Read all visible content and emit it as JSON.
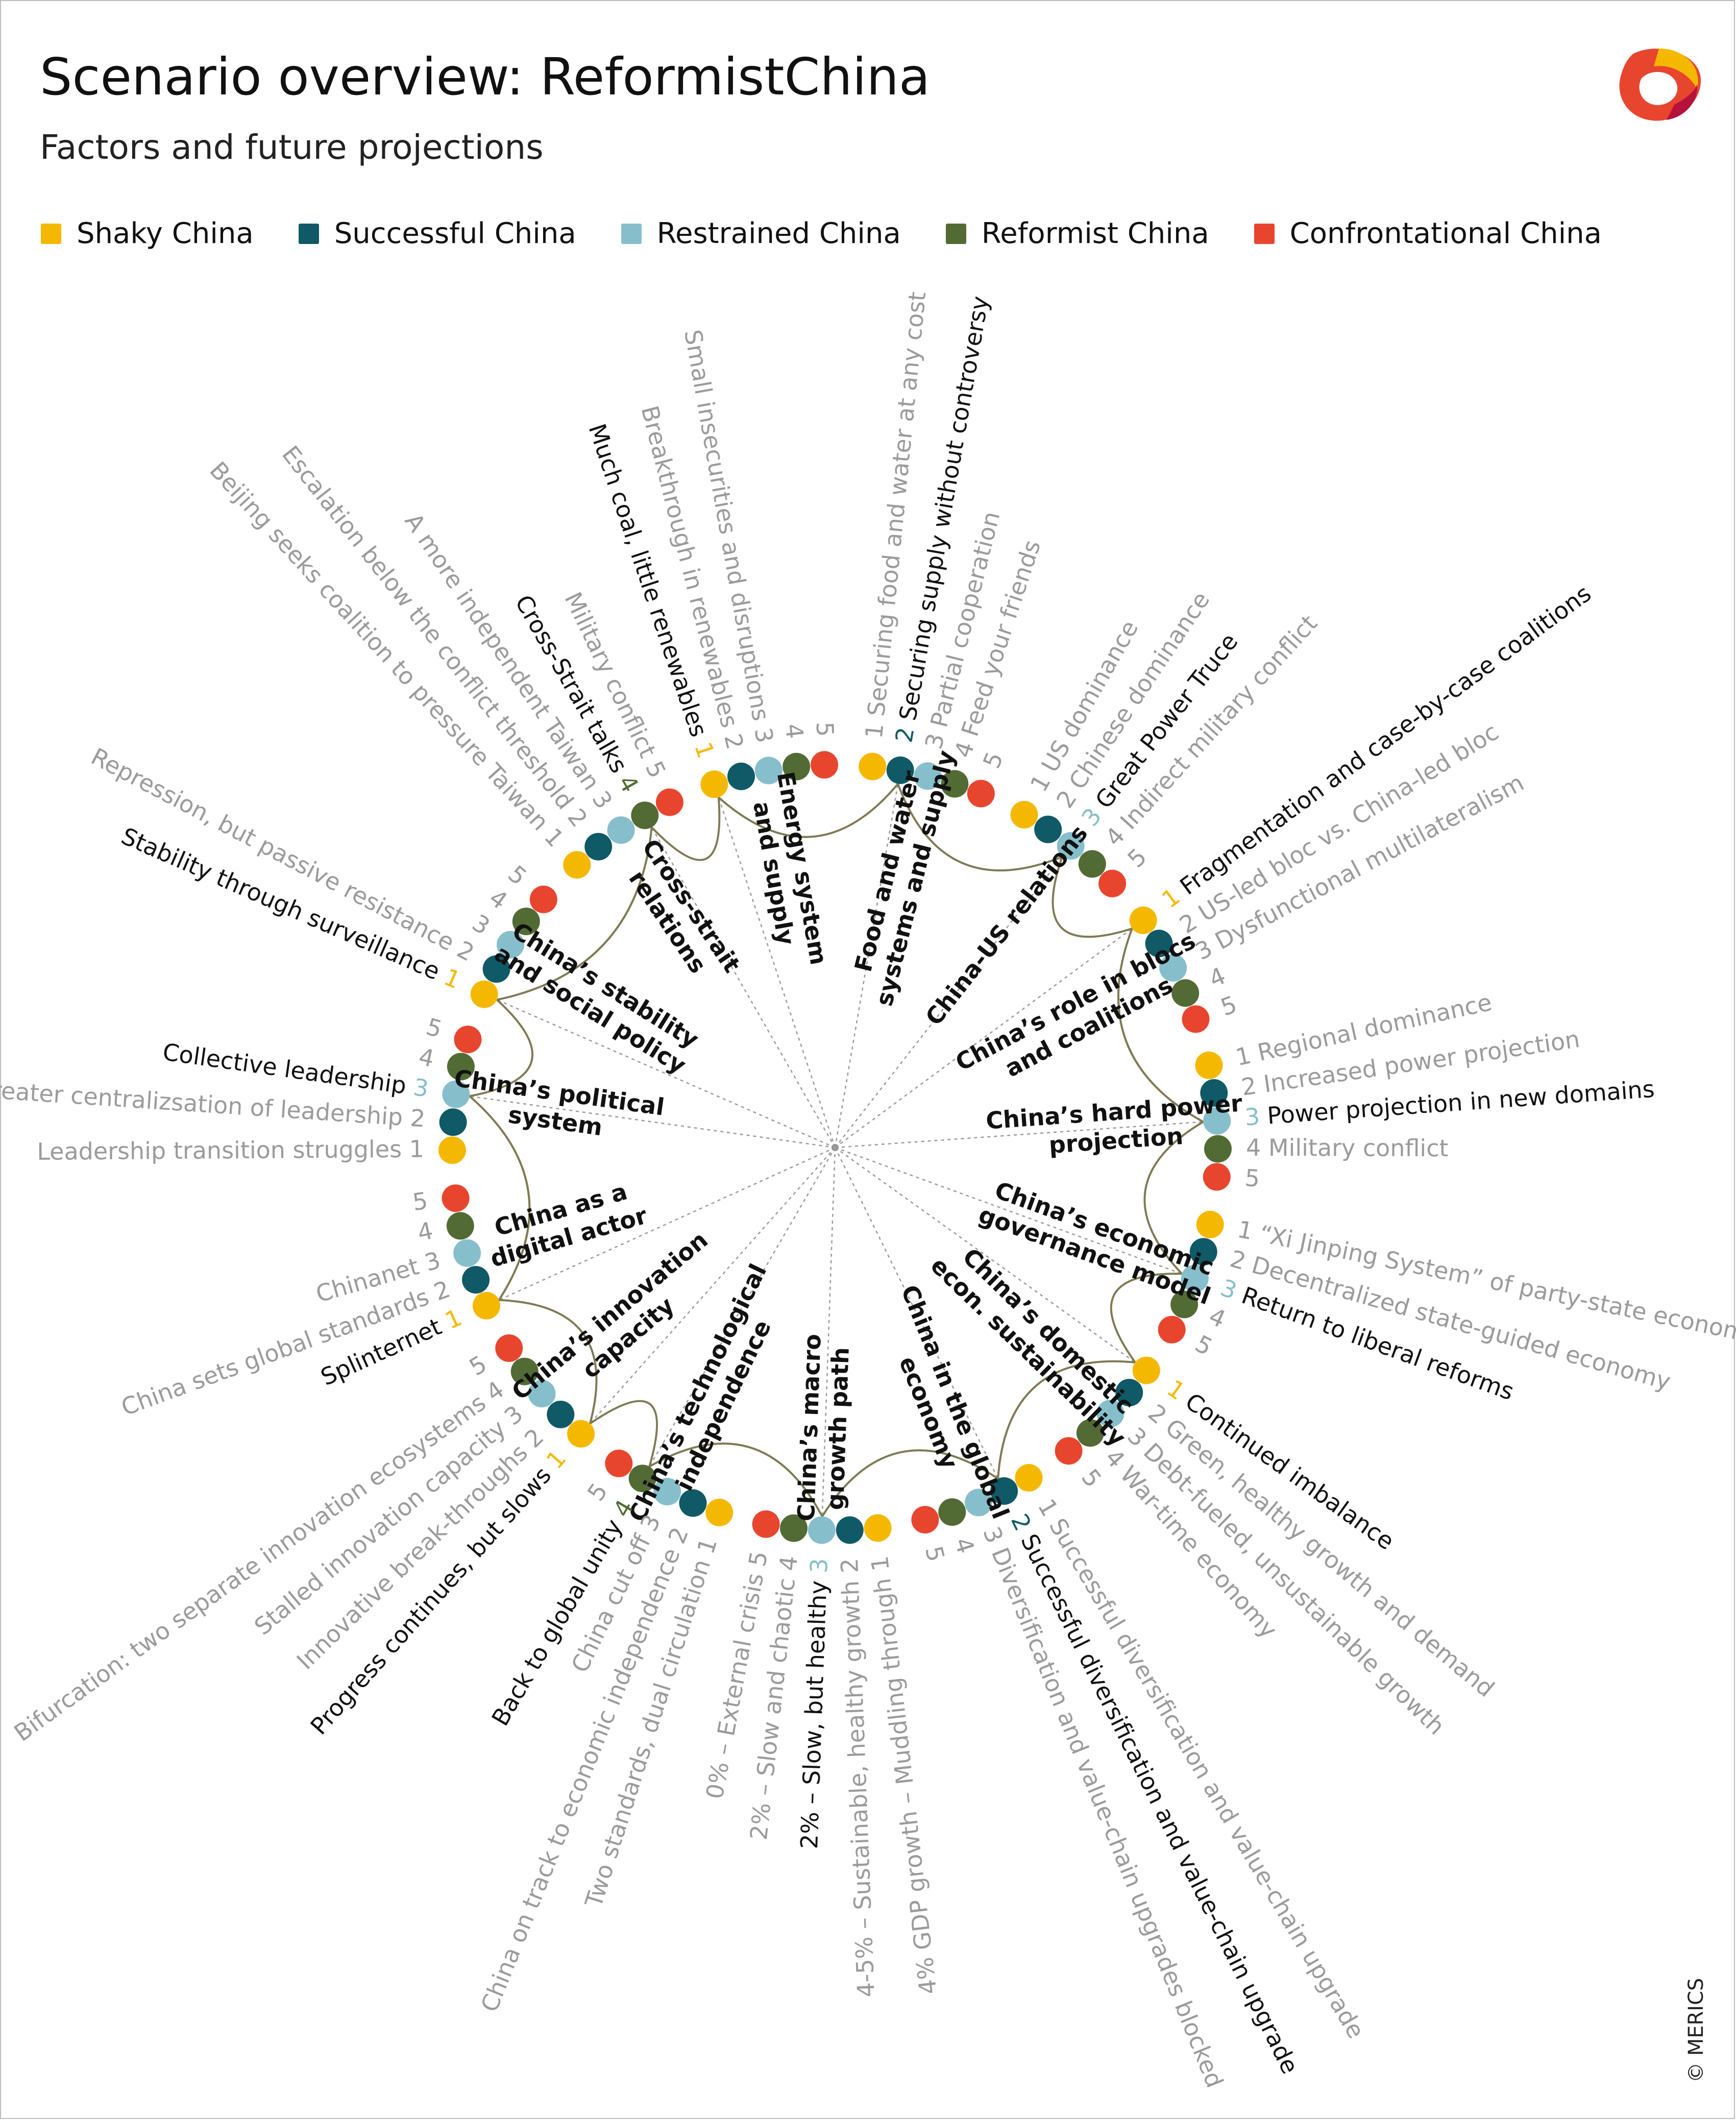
{
  "title": "Scenario overview: ReformistChina",
  "subtitle": "Factors and future projections",
  "copyright": "© MERICS",
  "legend": [
    {
      "label": "Shaky China",
      "color": "#F5B800"
    },
    {
      "label": "Successful China",
      "color": "#0F5A66"
    },
    {
      "label": "Restrained China",
      "color": "#86BFCB"
    },
    {
      "label": "Reformist China",
      "color": "#526B34"
    },
    {
      "label": "Confrontational China",
      "color": "#E8452F"
    }
  ],
  "colors": {
    "shaky": "#F5B800",
    "successful": "#0F5A66",
    "restrained": "#86BFCB",
    "reformist": "#526B34",
    "confrontational": "#E8452F",
    "arc": "#7E7A54",
    "muted": "#9B9B9B",
    "dark": "#111111"
  },
  "factors": [
    {
      "name": [
        "Food and water",
        "systems and supply"
      ],
      "selected": 2,
      "projections": [
        "Securing food and water at any cost",
        "Securing supply without controversy",
        "Partial cooperation",
        "Feed your friends",
        ""
      ]
    },
    {
      "name": [
        "China-US relations"
      ],
      "selected": 3,
      "projections": [
        "US dominance",
        "Chinese dominance",
        "Great Power Truce",
        "Indirect military conflict",
        ""
      ]
    },
    {
      "name": [
        "China’s role in blocs",
        "and coalitions"
      ],
      "selected": 1,
      "projections": [
        "Fragmentation and case-by-case coalitions",
        "US-led bloc vs. China-led bloc",
        "Dysfunctional multilateralism",
        "",
        ""
      ]
    },
    {
      "name": [
        "China’s hard power",
        "projection"
      ],
      "selected": 3,
      "projections": [
        "Regional dominance",
        "Increased power projection",
        "Power projection in new domains",
        "Military conflict",
        ""
      ]
    },
    {
      "name": [
        "China’s economic",
        "governance model"
      ],
      "selected": 3,
      "projections": [
        "“Xi Jinping System” of party-state economy",
        "Decentralized state-guided economy",
        "Return to liberal reforms",
        "",
        ""
      ]
    },
    {
      "name": [
        "China’s domestic",
        "econ. sustainability"
      ],
      "selected": 1,
      "projections": [
        "Continued imbalance",
        "Green, healthy growth and demand",
        "Debt-fueled, unsustainable growth",
        "War-time economy",
        ""
      ]
    },
    {
      "name": [
        "China in the global",
        "economy"
      ],
      "selected": 2,
      "projections": [
        "Successful diversification and value-chain upgrade",
        "Successful diversification and value-chain upgrade",
        "Diversification and value-chain upgrades blocked",
        "",
        ""
      ]
    },
    {
      "name": [
        "China’s macro",
        "growth path"
      ],
      "selected": 3,
      "projections": [
        "4% GDP growth – Muddling through",
        "4-5% – Sustainable, healthy growth",
        "2% – Slow, but healthy",
        "2% – Slow and chaotic",
        "0% – External crisis"
      ]
    },
    {
      "name": [
        "China’s technological",
        "independence"
      ],
      "selected": 4,
      "projections": [
        "Two standards, dual circulation",
        "China on track to economic independence",
        "China cut off",
        "Back to global unity",
        ""
      ]
    },
    {
      "name": [
        "China’s innovation",
        "capacity"
      ],
      "selected": 1,
      "projections": [
        "Progress continues, but slows",
        "Innovative break-throughs",
        "Stalled innovation capacity",
        "Bifurcation: two separate innovation ecosystems",
        ""
      ]
    },
    {
      "name": [
        "China as a",
        "digital actor"
      ],
      "selected": 1,
      "projections": [
        "Splinternet",
        "China sets global standards",
        "Chinanet",
        "",
        ""
      ]
    },
    {
      "name": [
        "China’s political",
        "system"
      ],
      "selected": 3,
      "projections": [
        "Leadership transition struggles",
        "Greater centralizsation of leadership",
        "Collective leadership",
        "",
        ""
      ]
    },
    {
      "name": [
        "China’s stability",
        "and social policy"
      ],
      "selected": 1,
      "projections": [
        "Stability through surveillance",
        "Repression, but passive resistance",
        "",
        "",
        ""
      ]
    },
    {
      "name": [
        "Cross-strait",
        "relations"
      ],
      "selected": 4,
      "projections": [
        "Beijing seeks coalition to pressure Taiwan",
        "Escalation below the conflict threshold",
        "A more independent Taiwan",
        "Cross-Strait talks",
        "Military conflict"
      ]
    },
    {
      "name": [
        "Energy system",
        "and supply"
      ],
      "selected": 1,
      "projections": [
        "Much coal, little renewables",
        "Breakthrough in renewables",
        "Small insecurities and disruptions",
        "",
        ""
      ]
    }
  ]
}
